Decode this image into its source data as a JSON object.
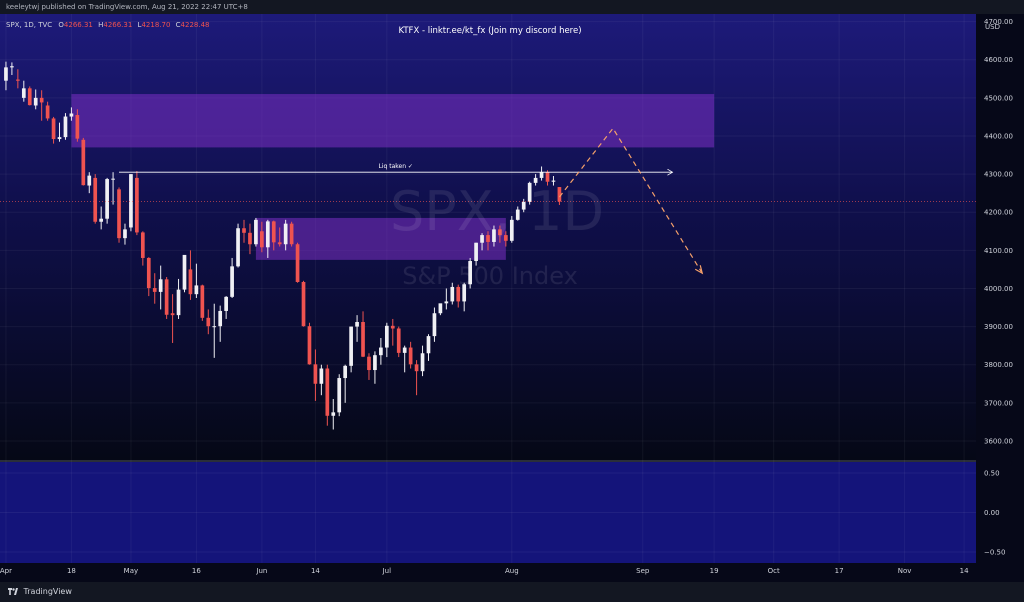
{
  "header": {
    "published": "keeleytwj published on TradingView.com, Aug 21, 2022 22:47 UTC+8",
    "symbol": "SPX, 1D, TVC",
    "ohlc": [
      {
        "key": "O",
        "value": "4266.31"
      },
      {
        "key": "H",
        "value": "4266.31"
      },
      {
        "key": "L",
        "value": "4218.70"
      },
      {
        "key": "C",
        "value": "4228.48"
      }
    ],
    "banner": "KTFX - linktr.ee/kt_fx (Join my discord here)",
    "currency": "USD"
  },
  "watermark": {
    "symbol": "SPX, 1D",
    "name": "S&P 500 Index"
  },
  "annotations": {
    "liq_label": "Liq taken ✓"
  },
  "footer": {
    "brand": "TradingView"
  },
  "colors": {
    "up": "#f0f0f4",
    "down": "#ef5350",
    "zone": "#7b2fc4",
    "projection": "#f5a06a",
    "background_top": "#1d1a7a",
    "background_bottom": "#050816",
    "oscillator": "#1a1a8c"
  },
  "chart_data": [
    {
      "type": "candlestick",
      "title": "SPX, 1D, TVC",
      "ylabel": "USD",
      "ylim": [
        3550,
        4720
      ],
      "y_ticks": [
        "4700.00",
        "4600.00",
        "4500.00",
        "4400.00",
        "4300.00",
        "4200.00",
        "4100.00",
        "4000.00",
        "3900.00",
        "3800.00",
        "3700.00",
        "3600.00"
      ],
      "x_ticks": [
        {
          "label": "Apr",
          "idx": 0
        },
        {
          "label": "18",
          "idx": 11
        },
        {
          "label": "May",
          "idx": 21
        },
        {
          "label": "16",
          "idx": 32
        },
        {
          "label": "Jun",
          "idx": 43
        },
        {
          "label": "14",
          "idx": 52
        },
        {
          "label": "Jul",
          "idx": 64
        },
        {
          "label": "Aug",
          "idx": 85
        },
        {
          "label": "Sep",
          "idx": 107
        },
        {
          "label": "19",
          "idx": 119
        },
        {
          "label": "Oct",
          "idx": 129
        },
        {
          "label": "17",
          "idx": 140
        },
        {
          "label": "Nov",
          "idx": 151
        },
        {
          "label": "14",
          "idx": 161
        }
      ],
      "x_range": [
        -1,
        163
      ],
      "candles": [
        [
          4545,
          4595,
          4520,
          4580
        ],
        [
          4580,
          4593,
          4560,
          4583
        ],
        [
          4548,
          4575,
          4525,
          4545
        ],
        [
          4500,
          4545,
          4490,
          4525
        ],
        [
          4525,
          4530,
          4480,
          4481
        ],
        [
          4480,
          4522,
          4470,
          4500
        ],
        [
          4500,
          4520,
          4440,
          4488
        ],
        [
          4480,
          4490,
          4440,
          4446
        ],
        [
          4446,
          4450,
          4380,
          4392
        ],
        [
          4392,
          4435,
          4385,
          4397
        ],
        [
          4397,
          4460,
          4390,
          4451
        ],
        [
          4451,
          4475,
          4440,
          4459
        ],
        [
          4455,
          4470,
          4385,
          4393
        ],
        [
          4390,
          4395,
          4270,
          4271
        ],
        [
          4270,
          4305,
          4250,
          4296
        ],
        [
          4290,
          4300,
          4170,
          4175
        ],
        [
          4175,
          4215,
          4155,
          4183
        ],
        [
          4183,
          4290,
          4170,
          4287
        ],
        [
          4287,
          4305,
          4220,
          4288
        ],
        [
          4260,
          4265,
          4120,
          4132
        ],
        [
          4132,
          4170,
          4115,
          4155
        ],
        [
          4160,
          4300,
          4150,
          4300
        ],
        [
          4290,
          4308,
          4140,
          4147
        ],
        [
          4147,
          4150,
          4060,
          4080
        ],
        [
          4080,
          4082,
          3980,
          4001
        ],
        [
          4001,
          4040,
          3960,
          3991
        ],
        [
          3991,
          4060,
          3945,
          4024
        ],
        [
          4024,
          4030,
          3920,
          3931
        ],
        [
          3935,
          3985,
          3857,
          3930
        ],
        [
          3930,
          4025,
          3920,
          3997
        ],
        [
          3997,
          4080,
          3990,
          4088
        ],
        [
          4050,
          4100,
          3970,
          3985
        ],
        [
          3985,
          4065,
          3975,
          4008
        ],
        [
          4008,
          4010,
          3915,
          3923
        ],
        [
          3923,
          3945,
          3880,
          3901
        ],
        [
          3901,
          3960,
          3818,
          3901
        ],
        [
          3901,
          3955,
          3860,
          3941
        ],
        [
          3941,
          3980,
          3920,
          3978
        ],
        [
          3978,
          4080,
          3975,
          4058
        ],
        [
          4058,
          4170,
          4055,
          4158
        ],
        [
          4158,
          4180,
          4120,
          4146
        ],
        [
          4146,
          4170,
          4090,
          4116
        ],
        [
          4116,
          4185,
          4110,
          4180
        ],
        [
          4150,
          4175,
          4095,
          4108
        ],
        [
          4108,
          4180,
          4080,
          4176
        ],
        [
          4176,
          4178,
          4100,
          4121
        ],
        [
          4121,
          4160,
          4110,
          4116
        ],
        [
          4116,
          4180,
          4100,
          4170
        ],
        [
          4170,
          4175,
          4110,
          4116
        ],
        [
          4116,
          4120,
          4015,
          4017
        ],
        [
          4017,
          4020,
          3900,
          3901
        ],
        [
          3901,
          3910,
          3800,
          3801
        ],
        [
          3801,
          3840,
          3705,
          3750
        ],
        [
          3750,
          3800,
          3720,
          3790
        ],
        [
          3790,
          3800,
          3640,
          3666
        ],
        [
          3666,
          3710,
          3630,
          3675
        ],
        [
          3675,
          3775,
          3665,
          3765
        ],
        [
          3765,
          3800,
          3700,
          3797
        ],
        [
          3797,
          3900,
          3780,
          3900
        ],
        [
          3900,
          3930,
          3860,
          3912
        ],
        [
          3912,
          3940,
          3820,
          3821
        ],
        [
          3821,
          3830,
          3760,
          3786
        ],
        [
          3786,
          3835,
          3750,
          3825
        ],
        [
          3825,
          3870,
          3800,
          3845
        ],
        [
          3845,
          3910,
          3820,
          3902
        ],
        [
          3902,
          3920,
          3850,
          3895
        ],
        [
          3895,
          3900,
          3820,
          3831
        ],
        [
          3831,
          3850,
          3780,
          3845
        ],
        [
          3845,
          3860,
          3790,
          3801
        ],
        [
          3801,
          3812,
          3720,
          3783
        ],
        [
          3783,
          3850,
          3770,
          3830
        ],
        [
          3830,
          3880,
          3810,
          3875
        ],
        [
          3875,
          3950,
          3860,
          3935
        ],
        [
          3935,
          3960,
          3930,
          3961
        ],
        [
          3961,
          4000,
          3945,
          3966
        ],
        [
          3966,
          4015,
          3958,
          4004
        ],
        [
          4004,
          4010,
          3950,
          3966
        ],
        [
          3966,
          4015,
          3940,
          4011
        ],
        [
          4011,
          4080,
          4000,
          4072
        ],
        [
          4072,
          4120,
          4060,
          4120
        ],
        [
          4120,
          4145,
          4100,
          4140
        ],
        [
          4140,
          4150,
          4100,
          4122
        ],
        [
          4122,
          4165,
          4110,
          4155
        ],
        [
          4155,
          4165,
          4120,
          4140
        ],
        [
          4140,
          4150,
          4110,
          4125
        ],
        [
          4125,
          4190,
          4120,
          4180
        ],
        [
          4180,
          4215,
          4178,
          4207
        ],
        [
          4207,
          4235,
          4200,
          4227
        ],
        [
          4227,
          4280,
          4220,
          4277
        ],
        [
          4277,
          4300,
          4270,
          4290
        ],
        [
          4290,
          4320,
          4283,
          4305
        ],
        [
          4305,
          4310,
          4270,
          4280
        ],
        [
          4280,
          4295,
          4270,
          4283
        ],
        [
          4266,
          4266,
          4219,
          4228
        ]
      ],
      "zones": [
        {
          "from_idx": 11,
          "to_idx": 119,
          "low": 4370,
          "high": 4510
        },
        {
          "from_idx": 42,
          "to_idx": 84,
          "low": 4075,
          "high": 4185
        }
      ],
      "liq_line": {
        "from_idx": 19,
        "to_idx": 112,
        "price": 4305
      },
      "projection": [
        {
          "idx": 93,
          "price": 4240
        },
        {
          "idx": 102,
          "price": 4420
        },
        {
          "idx": 117,
          "price": 4040
        }
      ]
    },
    {
      "type": "line",
      "title": "",
      "y_ticks": [
        "0.50",
        "0.00",
        "−0.50"
      ],
      "ylim": [
        -0.64,
        0.64
      ],
      "values": []
    }
  ]
}
